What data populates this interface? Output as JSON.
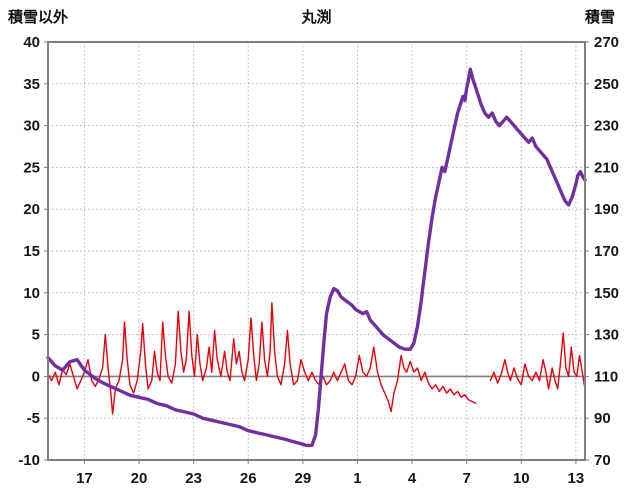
{
  "header": {
    "left_axis_label": "積雪以外",
    "title": "丸渕",
    "right_axis_label": "積雪"
  },
  "chart_data": {
    "type": "line",
    "title": "丸渕",
    "grid": true,
    "legend": "none",
    "x_axis": {
      "min": 0,
      "max": 29.5,
      "tick_positions": [
        2,
        5,
        8,
        11,
        14,
        17,
        20,
        23,
        26,
        29
      ],
      "tick_labels": [
        "17",
        "20",
        "23",
        "26",
        "29",
        "1",
        "4",
        "7",
        "10",
        "13"
      ]
    },
    "left_axis": {
      "label": "積雪以外",
      "min": -10,
      "max": 40,
      "ticks": [
        40,
        35,
        30,
        25,
        20,
        15,
        10,
        5,
        0,
        -5,
        -10
      ]
    },
    "right_axis": {
      "label": "積雪",
      "min": 70,
      "max": 270,
      "ticks": [
        270,
        250,
        230,
        210,
        190,
        170,
        150,
        130,
        110,
        90,
        70
      ]
    },
    "zero_line": 0,
    "colors": {
      "red_series": "#e8000a",
      "purple_series": "#7030a0",
      "grid": "#b3b3b3",
      "frame": "#7f7f7f"
    },
    "series": [
      {
        "name": "積雪以外",
        "axis": "left",
        "color": "#e8000a",
        "width": 1.4,
        "segments": [
          [
            [
              0,
              0.3
            ],
            [
              0.2,
              -0.5
            ],
            [
              0.4,
              0.5
            ],
            [
              0.6,
              -1
            ],
            [
              0.8,
              0.8
            ],
            [
              1,
              0.2
            ],
            [
              1.2,
              1.5
            ],
            [
              1.4,
              0
            ],
            [
              1.6,
              -1.5
            ],
            [
              1.8,
              -0.5
            ],
            [
              2,
              0.5
            ],
            [
              2.2,
              2
            ],
            [
              2.4,
              -0.5
            ],
            [
              2.6,
              -1.2
            ],
            [
              2.8,
              -0.3
            ],
            [
              3,
              1
            ],
            [
              3.15,
              5
            ],
            [
              3.3,
              1
            ],
            [
              3.45,
              -2
            ],
            [
              3.55,
              -4.5
            ],
            [
              3.7,
              -1.5
            ],
            [
              3.9,
              -0.5
            ],
            [
              4.1,
              2
            ],
            [
              4.2,
              6.5
            ],
            [
              4.35,
              2
            ],
            [
              4.5,
              -1
            ],
            [
              4.7,
              -2
            ],
            [
              4.9,
              -0.5
            ],
            [
              5.1,
              3
            ],
            [
              5.2,
              6.3
            ],
            [
              5.35,
              1.5
            ],
            [
              5.5,
              -1.5
            ],
            [
              5.7,
              -0.5
            ],
            [
              5.85,
              3
            ],
            [
              6,
              0.5
            ],
            [
              6.15,
              -0.5
            ],
            [
              6.3,
              6.5
            ],
            [
              6.45,
              2.5
            ],
            [
              6.6,
              0
            ],
            [
              6.8,
              -0.8
            ],
            [
              7,
              1.5
            ],
            [
              7.15,
              7.8
            ],
            [
              7.3,
              3
            ],
            [
              7.45,
              0.5
            ],
            [
              7.6,
              2
            ],
            [
              7.75,
              7.8
            ],
            [
              7.9,
              2.5
            ],
            [
              8.05,
              0
            ],
            [
              8.2,
              5
            ],
            [
              8.35,
              1.5
            ],
            [
              8.5,
              -0.5
            ],
            [
              8.7,
              1
            ],
            [
              8.85,
              3.5
            ],
            [
              9,
              0.5
            ],
            [
              9.15,
              5.5
            ],
            [
              9.3,
              2
            ],
            [
              9.5,
              0
            ],
            [
              9.7,
              3
            ],
            [
              9.85,
              0.5
            ],
            [
              10,
              -0.5
            ],
            [
              10.2,
              4.5
            ],
            [
              10.35,
              1.5
            ],
            [
              10.5,
              3
            ],
            [
              10.65,
              0.5
            ],
            [
              10.8,
              -0.5
            ],
            [
              11,
              2
            ],
            [
              11.15,
              7
            ],
            [
              11.3,
              2.5
            ],
            [
              11.45,
              -0.5
            ],
            [
              11.6,
              1.5
            ],
            [
              11.75,
              6.5
            ],
            [
              11.9,
              2
            ],
            [
              12.05,
              0
            ],
            [
              12.2,
              3
            ],
            [
              12.3,
              8.8
            ],
            [
              12.45,
              3
            ],
            [
              12.6,
              0
            ],
            [
              12.8,
              -1
            ],
            [
              13,
              1.5
            ],
            [
              13.15,
              5.5
            ],
            [
              13.3,
              1.5
            ],
            [
              13.5,
              -1
            ],
            [
              13.7,
              -0.5
            ],
            [
              13.9,
              2
            ],
            [
              14.1,
              0.5
            ],
            [
              14.3,
              -0.5
            ],
            [
              14.5,
              0.5
            ],
            [
              14.7,
              -0.5
            ],
            [
              14.9,
              -1
            ],
            [
              15.1,
              0
            ],
            [
              15.3,
              -1
            ],
            [
              15.5,
              -0.5
            ],
            [
              15.7,
              0.5
            ],
            [
              15.9,
              -0.5
            ],
            [
              16.1,
              0.5
            ],
            [
              16.3,
              1.5
            ],
            [
              16.5,
              -0.5
            ],
            [
              16.7,
              -1
            ],
            [
              16.9,
              0
            ],
            [
              17.1,
              2.5
            ],
            [
              17.3,
              0.5
            ],
            [
              17.5,
              0
            ],
            [
              17.7,
              1
            ],
            [
              17.9,
              3.5
            ],
            [
              18.1,
              0.5
            ],
            [
              18.3,
              -1
            ],
            [
              18.5,
              -2
            ],
            [
              18.7,
              -3
            ],
            [
              18.85,
              -4.2
            ],
            [
              19,
              -2
            ],
            [
              19.2,
              -0.5
            ],
            [
              19.4,
              2.5
            ],
            [
              19.55,
              1
            ],
            [
              19.7,
              0.5
            ],
            [
              19.9,
              1.8
            ],
            [
              20.1,
              0.5
            ],
            [
              20.3,
              1
            ],
            [
              20.5,
              -0.5
            ],
            [
              20.7,
              0.5
            ],
            [
              20.9,
              -0.8
            ],
            [
              21.1,
              -1.5
            ],
            [
              21.3,
              -1
            ],
            [
              21.5,
              -1.8
            ],
            [
              21.7,
              -1.2
            ],
            [
              21.9,
              -2
            ],
            [
              22.1,
              -1.5
            ],
            [
              22.3,
              -2.2
            ],
            [
              22.5,
              -1.8
            ],
            [
              22.7,
              -2.5
            ],
            [
              22.9,
              -2.2
            ],
            [
              23.1,
              -2.8
            ],
            [
              23.3,
              -3
            ],
            [
              23.5,
              -3.2
            ]
          ],
          [
            [
              24.3,
              -0.5
            ],
            [
              24.5,
              0.5
            ],
            [
              24.7,
              -0.8
            ],
            [
              24.9,
              0.3
            ],
            [
              25.1,
              2
            ],
            [
              25.25,
              0.5
            ],
            [
              25.4,
              -0.5
            ],
            [
              25.6,
              1
            ],
            [
              25.8,
              -0.3
            ],
            [
              26,
              -1
            ],
            [
              26.2,
              1.5
            ],
            [
              26.4,
              0
            ],
            [
              26.6,
              -0.5
            ],
            [
              26.8,
              0.5
            ],
            [
              27,
              -0.5
            ],
            [
              27.2,
              2
            ],
            [
              27.35,
              0.5
            ],
            [
              27.5,
              -1.5
            ],
            [
              27.7,
              1
            ],
            [
              27.85,
              -0.5
            ],
            [
              28,
              -1.5
            ],
            [
              28.15,
              1.5
            ],
            [
              28.3,
              5.2
            ],
            [
              28.45,
              1
            ],
            [
              28.6,
              0
            ],
            [
              28.75,
              3.5
            ],
            [
              28.9,
              0.5
            ],
            [
              29.05,
              0
            ],
            [
              29.2,
              2.5
            ],
            [
              29.35,
              0.5
            ],
            [
              29.5,
              -1.5
            ]
          ]
        ]
      },
      {
        "name": "積雪",
        "axis": "right",
        "color": "#7030a0",
        "width": 3.4,
        "segments": [
          [
            [
              0,
              119
            ],
            [
              0.4,
              115
            ],
            [
              0.8,
              113
            ],
            [
              1.2,
              117
            ],
            [
              1.6,
              118
            ],
            [
              2,
              113
            ],
            [
              2.3,
              111
            ],
            [
              2.6,
              109
            ],
            [
              3,
              107
            ],
            [
              3.5,
              105
            ],
            [
              4,
              103
            ],
            [
              4.5,
              101
            ],
            [
              5,
              100
            ],
            [
              5.5,
              99
            ],
            [
              6,
              97
            ],
            [
              6.5,
              96
            ],
            [
              7,
              94
            ],
            [
              7.5,
              93
            ],
            [
              8,
              92
            ],
            [
              8.5,
              90
            ],
            [
              9,
              89
            ],
            [
              9.5,
              88
            ],
            [
              10,
              87
            ],
            [
              10.5,
              86
            ],
            [
              11,
              84
            ],
            [
              11.5,
              83
            ],
            [
              12,
              82
            ],
            [
              12.5,
              81
            ],
            [
              13,
              80
            ],
            [
              13.4,
              79
            ],
            [
              13.8,
              78
            ],
            [
              14.2,
              77
            ],
            [
              14.5,
              77
            ],
            [
              14.7,
              82
            ],
            [
              14.85,
              94
            ],
            [
              15,
              110
            ],
            [
              15.15,
              126
            ],
            [
              15.3,
              140
            ],
            [
              15.5,
              148
            ],
            [
              15.7,
              152
            ],
            [
              15.9,
              151
            ],
            [
              16.1,
              148
            ],
            [
              16.4,
              146
            ],
            [
              16.7,
              144
            ],
            [
              16.9,
              142
            ],
            [
              17.1,
              141
            ],
            [
              17.3,
              140
            ],
            [
              17.5,
              141
            ],
            [
              17.7,
              137
            ],
            [
              17.9,
              135
            ],
            [
              18.1,
              133
            ],
            [
              18.4,
              130
            ],
            [
              18.7,
              128
            ],
            [
              19,
              126
            ],
            [
              19.3,
              124
            ],
            [
              19.6,
              123
            ],
            [
              19.9,
              123
            ],
            [
              20.1,
              126
            ],
            [
              20.3,
              134
            ],
            [
              20.5,
              146
            ],
            [
              20.7,
              160
            ],
            [
              20.9,
              174
            ],
            [
              21.1,
              186
            ],
            [
              21.3,
              196
            ],
            [
              21.5,
              204
            ],
            [
              21.65,
              210
            ],
            [
              21.8,
              208
            ],
            [
              22,
              216
            ],
            [
              22.2,
              224
            ],
            [
              22.35,
              230
            ],
            [
              22.5,
              236
            ],
            [
              22.65,
              240
            ],
            [
              22.8,
              244
            ],
            [
              22.9,
              242
            ],
            [
              23,
              248
            ],
            [
              23.1,
              252
            ],
            [
              23.2,
              257
            ],
            [
              23.35,
              252
            ],
            [
              23.5,
              248
            ],
            [
              23.65,
              244
            ],
            [
              23.8,
              240
            ],
            [
              24,
              236
            ],
            [
              24.2,
              234
            ],
            [
              24.4,
              236
            ],
            [
              24.6,
              232
            ],
            [
              24.8,
              230
            ],
            [
              25,
              232
            ],
            [
              25.2,
              234
            ],
            [
              25.4,
              232
            ],
            [
              25.6,
              230
            ],
            [
              25.8,
              228
            ],
            [
              26,
              226
            ],
            [
              26.2,
              224
            ],
            [
              26.4,
              222
            ],
            [
              26.6,
              224
            ],
            [
              26.8,
              220
            ],
            [
              27,
              218
            ],
            [
              27.2,
              216
            ],
            [
              27.4,
              214
            ],
            [
              27.6,
              210
            ],
            [
              27.8,
              206
            ],
            [
              28,
              202
            ],
            [
              28.2,
              198
            ],
            [
              28.4,
              194
            ],
            [
              28.6,
              192
            ],
            [
              28.8,
              196
            ],
            [
              29,
              202
            ],
            [
              29.1,
              206
            ],
            [
              29.25,
              208
            ],
            [
              29.4,
              205
            ],
            [
              29.5,
              204
            ]
          ]
        ]
      }
    ]
  }
}
